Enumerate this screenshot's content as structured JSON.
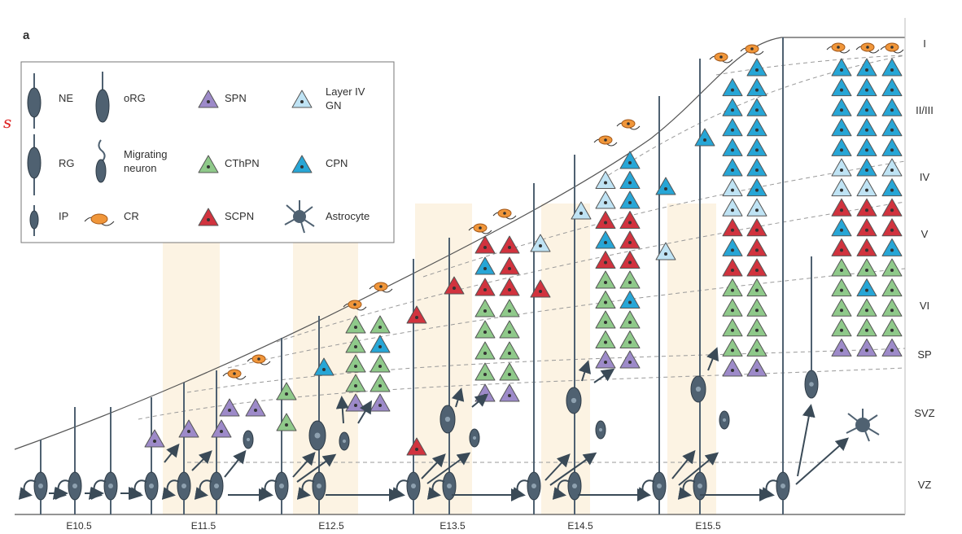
{
  "panel_label": "a",
  "side_mark": "s",
  "legend": {
    "items": [
      {
        "key": "ne",
        "label": "NE"
      },
      {
        "key": "org",
        "label": "oRG"
      },
      {
        "key": "spn",
        "label": "SPN"
      },
      {
        "key": "l4",
        "label": "Layer IV",
        "label2": "GN"
      },
      {
        "key": "rg",
        "label": "RG"
      },
      {
        "key": "mig",
        "label": "Migrating",
        "label2": "neuron"
      },
      {
        "key": "cthpn",
        "label": "CThPN"
      },
      {
        "key": "cpn",
        "label": "CPN"
      },
      {
        "key": "ip",
        "label": "IP"
      },
      {
        "key": "cr",
        "label": "CR"
      },
      {
        "key": "scpn",
        "label": "SCPN"
      },
      {
        "key": "astro",
        "label": "Astrocyte"
      }
    ]
  },
  "layers": [
    "I",
    "II/III",
    "IV",
    "V",
    "VI",
    "SP",
    "SVZ",
    "VZ"
  ],
  "stages": [
    "E10.5",
    "E11.5",
    "E12.5",
    "E13.5",
    "E14.5",
    "E15.5"
  ],
  "colors": {
    "purple": "#9d8ac9",
    "green": "#8fc98a",
    "blue": "#27a6d6",
    "lightblue": "#bfe3f4",
    "red": "#d1333e",
    "orange": "#f0963a",
    "cell": "#4f6171",
    "band": "#fbeed7",
    "line": "#555555"
  },
  "columns": {
    "e12": [
      [
        "green",
        "green"
      ],
      [
        "green",
        "blue"
      ],
      [
        "green",
        "green"
      ],
      [
        "green",
        "green"
      ],
      [
        "purple",
        "purple"
      ]
    ],
    "e13": [
      [
        "red",
        "red"
      ],
      [
        "blue",
        "red"
      ],
      [
        "red",
        "red"
      ],
      [
        "green",
        "green"
      ],
      [
        "green",
        "green"
      ],
      [
        "green",
        "green"
      ],
      [
        "green",
        "green"
      ],
      [
        "purple",
        "purple"
      ]
    ],
    "e14": [
      [
        "blue"
      ],
      [
        "lightblue",
        "blue"
      ],
      [
        "lightblue",
        "blue"
      ],
      [
        "red",
        "red"
      ],
      [
        "blue",
        "red"
      ],
      [
        "red",
        "red"
      ],
      [
        "green",
        "green"
      ],
      [
        "green",
        "blue"
      ],
      [
        "green",
        "green"
      ],
      [
        "green",
        "green"
      ],
      [
        "purple",
        "purple"
      ]
    ],
    "e15": [
      [
        "blue"
      ],
      [
        "blue",
        "blue"
      ],
      [
        "blue",
        "blue"
      ],
      [
        "blue",
        "blue"
      ],
      [
        "blue",
        "blue"
      ],
      [
        "blue",
        "blue"
      ],
      [
        "lightblue",
        "blue"
      ],
      [
        "lightblue",
        "lightblue"
      ],
      [
        "red",
        "red"
      ],
      [
        "blue",
        "red"
      ],
      [
        "red",
        "red"
      ],
      [
        "green",
        "green"
      ],
      [
        "green",
        "green"
      ],
      [
        "green",
        "green"
      ],
      [
        "green",
        "green"
      ],
      [
        "purple",
        "purple"
      ]
    ],
    "adult": [
      [
        "blue",
        "blue",
        "blue"
      ],
      [
        "blue",
        "blue",
        "blue"
      ],
      [
        "blue",
        "blue",
        "blue"
      ],
      [
        "blue",
        "blue",
        "blue"
      ],
      [
        "blue",
        "blue",
        "blue"
      ],
      [
        "lightblue",
        "blue",
        "lightblue"
      ],
      [
        "lightblue",
        "lightblue",
        "blue"
      ],
      [
        "red",
        "red",
        "red"
      ],
      [
        "blue",
        "red",
        "red"
      ],
      [
        "red",
        "red",
        "blue"
      ],
      [
        "green",
        "green",
        "green"
      ],
      [
        "green",
        "blue",
        "green"
      ],
      [
        "green",
        "green",
        "green"
      ],
      [
        "green",
        "green",
        "green"
      ],
      [
        "purple",
        "purple",
        "purple"
      ]
    ]
  }
}
